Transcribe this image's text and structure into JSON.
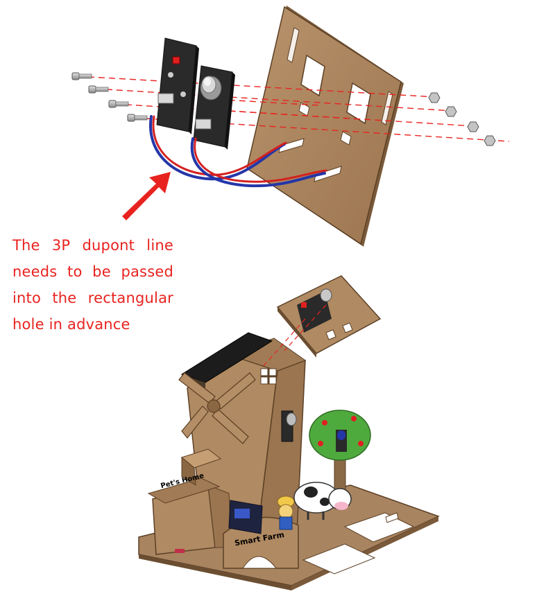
{
  "instruction": {
    "text": "The 3P dupont line needs to be passed into the rectangular hole in advance",
    "color": "#e8231f"
  },
  "labels": {
    "house_sign": "Pet's Home",
    "farm_arch": "Smart Farm"
  },
  "colors": {
    "wood": "#b08a62",
    "wood_dark": "#7d5c3c",
    "wood_edge": "#5b3f25",
    "module_board": "#2a2a2a",
    "guide_line": "#e8231f",
    "wire_red": "#d42020",
    "wire_blue": "#2436a8",
    "screw": "#b9b9b9"
  },
  "icons": [
    "arrow-icon",
    "screw-icon",
    "nut-icon",
    "led-icon",
    "sensor-knob-icon",
    "solar-panel-icon",
    "windmill-icon",
    "tree-icon",
    "cow-icon",
    "farmer-icon"
  ]
}
